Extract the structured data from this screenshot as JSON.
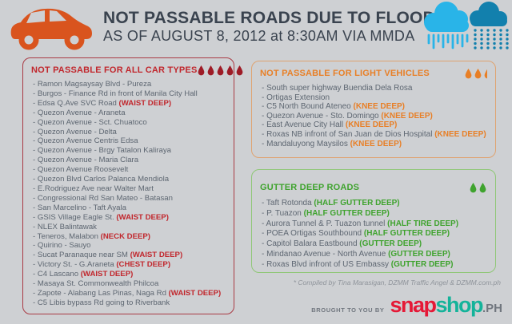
{
  "header": {
    "title": "NOT PASSABLE ROADS DUE TO FLOODS",
    "subtitle": "AS OF AUGUST 8, 2012 at 8:30AM VIA MMDA"
  },
  "boxes": {
    "all_car": {
      "title": "NOT PASSABLE FOR ALL CAR TYPES",
      "droplets": 5,
      "accent": "#c1272d",
      "droplet_color": "#9e1b26",
      "items": [
        {
          "text": "Ramon Magsaysay Blvd - Pureza",
          "note": ""
        },
        {
          "text": "Burgos - Finance Rd in front of Manila City Hall",
          "note": ""
        },
        {
          "text": "Edsa Q.Ave SVC Road",
          "note": "(WAIST DEEP)"
        },
        {
          "text": "Quezon Avenue - Araneta",
          "note": ""
        },
        {
          "text": "Quezon Avenue - Sct. Chuatoco",
          "note": ""
        },
        {
          "text": "Quezon Avenue - Delta",
          "note": ""
        },
        {
          "text": "Quezon Avenue Centris Edsa",
          "note": ""
        },
        {
          "text": "Quezon Avenue - Brgy Tatalon Kaliraya",
          "note": ""
        },
        {
          "text": "Quezon Avenue - Maria Clara",
          "note": ""
        },
        {
          "text": "Quezon Avenue Roosevelt",
          "note": ""
        },
        {
          "text": "Quezon Blvd Carlos Palanca Mendiola",
          "note": ""
        },
        {
          "text": "E.Rodriguez Ave near Walter Mart",
          "note": ""
        },
        {
          "text": "Congressional Rd San Mateo - Batasan",
          "note": ""
        },
        {
          "text": "San Marcelino - Taft Ayala",
          "note": ""
        },
        {
          "text": "GSIS Village Eagle St.",
          "note": "(WAIST DEEP)"
        },
        {
          "text": "NLEX Balintawak",
          "note": ""
        },
        {
          "text": "Teneros, Malabon",
          "note": "(NECK DEEP)"
        },
        {
          "text": "Quirino - Sauyo",
          "note": ""
        },
        {
          "text": "Sucat Paranaque near SM",
          "note": "(WAIST DEEP)"
        },
        {
          "text": "Victory St. - G.Araneta",
          "note": "(CHEST DEEP)"
        },
        {
          "text": "C4 Lascano",
          "note": "(WAIST DEEP)"
        },
        {
          "text": "Masaya St. Commonwealth Philcoa",
          "note": ""
        },
        {
          "text": "Zapote - Alabang Las Pinas, Naga Rd",
          "note": "(WAIST DEEP)"
        },
        {
          "text": "C5 Libis bypass Rd going to Riverbank",
          "note": ""
        }
      ]
    },
    "light_vehicles": {
      "title": "NOT PASSABLE FOR LIGHT VEHICLES",
      "droplets": 2.5,
      "accent": "#e87f26",
      "items": [
        {
          "text": "South super highway Buendia Dela Rosa",
          "note": ""
        },
        {
          "text": "Ortigas Extension",
          "note": ""
        },
        {
          "text": "C5 North Bound Ateneo",
          "note": "(KNEE DEEP)"
        },
        {
          "text": "Quezon Avenue - Sto. Domingo",
          "note": "(KNEE DEEP)"
        },
        {
          "text": "East Avenue City Hall",
          "note": "(KNEE DEEP)"
        },
        {
          "text": "Roxas NB infront of San Juan de Dios Hospital",
          "note": "(KNEE DEEP)"
        },
        {
          "text": "Mandaluyong Maysilos",
          "note": "(KNEE DEEP)"
        }
      ]
    },
    "gutter": {
      "title": "GUTTER DEEP ROADS",
      "droplets": 2,
      "accent": "#3fa32e",
      "items": [
        {
          "text": "Taft Rotonda",
          "note": "(HALF GUTTER DEEP)"
        },
        {
          "text": "P. Tuazon",
          "note": "(HALF GUTTER DEEP)"
        },
        {
          "text": "Aurora Tunnel & P. Tuazon tunnel",
          "note": "(HALF TIRE DEEP)"
        },
        {
          "text": "POEA Ortigas Southbound",
          "note": "(HALF GUTTER DEEP)"
        },
        {
          "text": "Capitol Balara Eastbound",
          "note": "(GUTTER DEEP)"
        },
        {
          "text": "Mindanao Avenue - North Avenue",
          "note": "(GUTTER DEEP)"
        },
        {
          "text": "Roxas Blvd infront of US Embassy",
          "note": "(GUTTER DEEP)"
        }
      ]
    }
  },
  "credit": "* Compiled by Tina Marasigan, DZMM Traffic Angel & DZMM.com.ph",
  "footer": {
    "brought": "BROUGHT TO YOU BY",
    "logo_snap": "snap",
    "logo_shop": "shop",
    "logo_tld": ".PH"
  },
  "colors": {
    "red": "#c1272d",
    "dark_red_drop": "#9e1b26",
    "red_border": "#a93a44",
    "orange": "#e87f26",
    "orange_border": "#dfa371",
    "green": "#3fa32e",
    "green_border": "#8fc776",
    "header_text": "#3a434f",
    "item_text": "#5d6671",
    "background": "#ced0d3",
    "car_orange": "#d9541e",
    "cloud_light_blue": "#29b4e8",
    "cloud_dark_blue": "#1280ad",
    "logo_snap_red": "#e51937",
    "logo_shop_teal": "#14b39a",
    "footer_gray": "#70767e",
    "credit_gray": "#8f949b"
  }
}
